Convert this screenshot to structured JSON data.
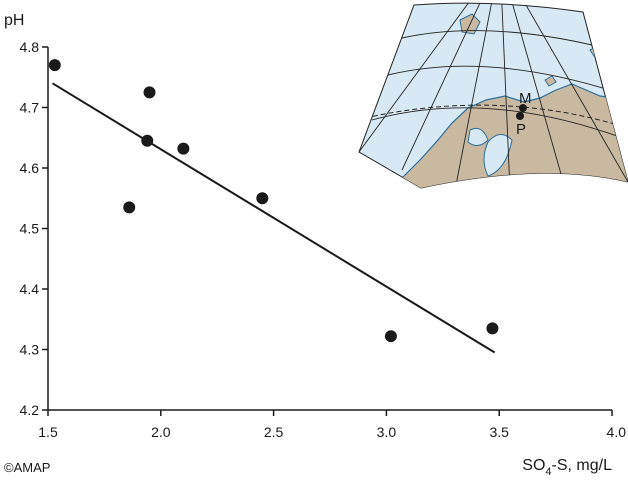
{
  "chart_data": {
    "type": "scatter",
    "ylabel": "pH",
    "xlabel_main": "SO",
    "xlabel_sub": "4",
    "xlabel_rest": "-S, mg/L",
    "xlim": [
      1.5,
      4.0
    ],
    "ylim": [
      4.2,
      4.8
    ],
    "xticks": [
      "1.5",
      "2.0",
      "2.5",
      "3.0",
      "3.5",
      "4.0"
    ],
    "yticks": [
      "4.2",
      "4.3",
      "4.4",
      "4.5",
      "4.6",
      "4.7",
      "4.8"
    ],
    "grid": false,
    "points": [
      {
        "x": 1.53,
        "y": 4.77
      },
      {
        "x": 1.86,
        "y": 4.535
      },
      {
        "x": 1.94,
        "y": 4.645
      },
      {
        "x": 1.95,
        "y": 4.725
      },
      {
        "x": 2.1,
        "y": 4.632
      },
      {
        "x": 2.45,
        "y": 4.55
      },
      {
        "x": 3.02,
        "y": 4.322
      },
      {
        "x": 3.47,
        "y": 4.335
      }
    ],
    "trendline": {
      "x": [
        1.52,
        3.48
      ],
      "y": [
        4.74,
        4.295
      ]
    }
  },
  "credit": "©AMAP",
  "inset_map": {
    "labels": [
      "M",
      "P"
    ],
    "colors": {
      "sea": "#d7e9f4",
      "land": "#c8b9a0",
      "grid": "#222222",
      "coast": "#2d6e9e"
    }
  }
}
